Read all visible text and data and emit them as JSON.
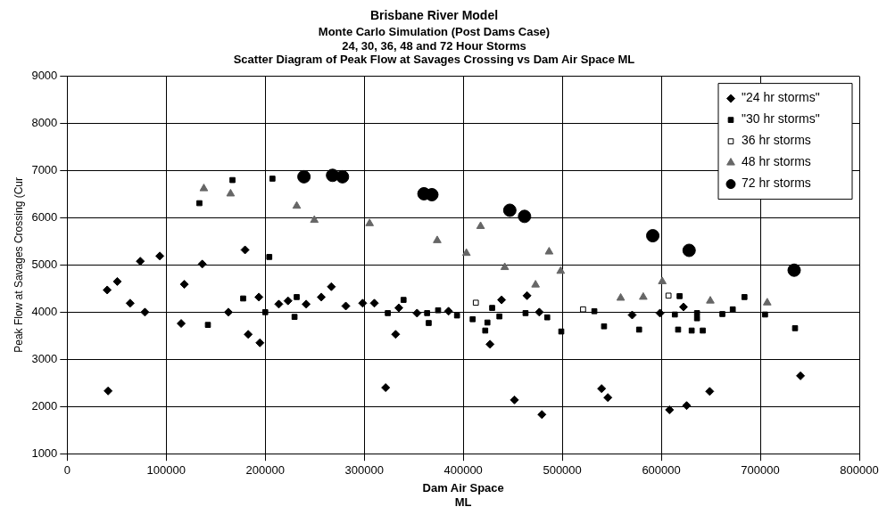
{
  "chart_data": {
    "type": "scatter",
    "title": "Brisbane River Model",
    "subtitle": [
      "Monte Carlo Simulation (Post Dams Case)",
      "24, 30, 36, 48 and 72 Hour Storms",
      "Scatter Diagram of Peak Flow at Savages Crossing vs Dam Air Space ML"
    ],
    "xlabel": "Dam Air Space\nML",
    "ylabel": "Peak Flow at Savages Crossing (Cur",
    "xlim": [
      0,
      800000
    ],
    "xticks": [
      0,
      100000,
      200000,
      300000,
      400000,
      500000,
      600000,
      700000,
      800000
    ],
    "ylim": [
      1000,
      9000
    ],
    "yticks": [
      1000,
      2000,
      3000,
      4000,
      5000,
      6000,
      7000,
      8000,
      9000
    ],
    "grid": true,
    "legend": "top right",
    "series": [
      {
        "name": "\"24 hr storms\"",
        "color": "#000000",
        "marker": "diamond",
        "x": [
          40400,
          50600,
          63600,
          73800,
          78500,
          93500,
          115100,
          118300,
          136400,
          162800,
          179600,
          182800,
          193600,
          194600,
          41300,
          213700,
          223000,
          241300,
          256600,
          266800,
          281400,
          298400,
          310200,
          334900,
          331700,
          321600,
          353300,
          385100,
          438700,
          427000,
          464400,
          476800,
          451700,
          479400,
          539700,
          546000,
          608300,
          625600,
          648900,
          740600,
          622400,
          598700,
          570600
        ],
        "values": [
          4470,
          4650,
          4190,
          5080,
          4000,
          5190,
          3760,
          4590,
          5020,
          4000,
          5320,
          3530,
          4320,
          3350,
          2330,
          4170,
          4240,
          4170,
          4320,
          4540,
          4130,
          4190,
          4190,
          4090,
          3530,
          2400,
          3980,
          4020,
          4260,
          3320,
          4350,
          4000,
          2140,
          1830,
          2380,
          2190,
          1930,
          2020,
          2320,
          2650,
          4110,
          3980,
          3940
        ]
      },
      {
        "name": "\"30 hr storms\"",
        "color": "#000000",
        "marker": "square",
        "x": [
          133500,
          142100,
          166900,
          177700,
          204100,
          207300,
          200000,
          229600,
          231800,
          323800,
          339700,
          363500,
          365100,
          374600,
          393700,
          409500,
          429200,
          424400,
          422200,
          436500,
          462900,
          484800,
          499000,
          532400,
          542200,
          577600,
          618500,
          617000,
          630700,
          641900,
          636100,
          636100,
          613700,
          661700,
          672200,
          684000,
          704800,
          735100
        ],
        "values": [
          6310,
          3730,
          6800,
          4290,
          5170,
          6830,
          4000,
          3900,
          4320,
          3980,
          4260,
          3980,
          3770,
          4040,
          3930,
          3850,
          4090,
          3780,
          3610,
          3910,
          3980,
          3890,
          3590,
          4020,
          3700,
          3630,
          4340,
          3630,
          3610,
          3610,
          3980,
          3870,
          3950,
          3960,
          4060,
          4320,
          3950,
          3660
        ]
      },
      {
        "name": "36 hr storms",
        "color": "#ffffff",
        "marker": "square",
        "x": [
          412700,
          521000,
          607300
        ],
        "values": [
          4200,
          4060,
          4350
        ]
      },
      {
        "name": "48 hr storms",
        "color": "#666666",
        "marker": "triangle",
        "x": [
          138000,
          165000,
          231800,
          249600,
          305400,
          373700,
          417500,
          403200,
          441900,
          486700,
          498400,
          473000,
          559000,
          601000,
          581800,
          649500,
          707000
        ],
        "values": [
          6620,
          6510,
          6250,
          5950,
          5880,
          5520,
          5820,
          5250,
          4950,
          5280,
          4870,
          4580,
          4300,
          4650,
          4320,
          4240,
          4200
        ]
      },
      {
        "name": "72 hr storms",
        "color": "#000000",
        "marker": "circle",
        "x": [
          239100,
          268000,
          278000,
          360300,
          368300,
          447000,
          461900,
          591400,
          628100,
          734200
        ],
        "values": [
          6870,
          6900,
          6870,
          6510,
          6490,
          6160,
          6030,
          5620,
          5310,
          4890
        ]
      }
    ]
  }
}
